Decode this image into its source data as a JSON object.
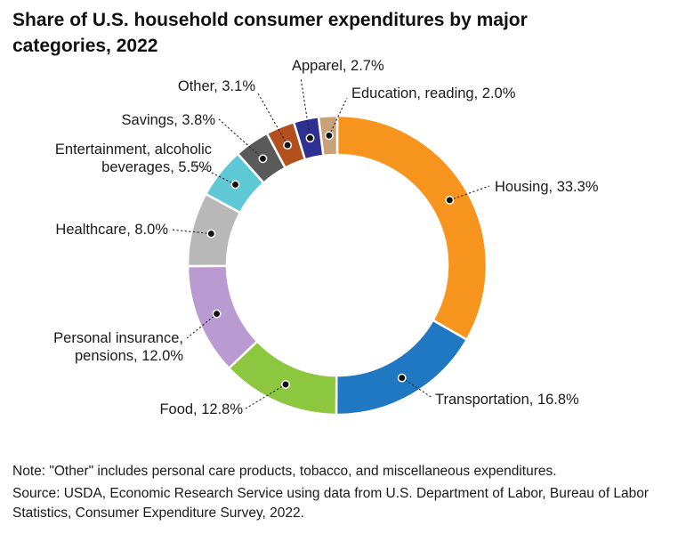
{
  "chart_data": {
    "type": "pie",
    "title": "Share of U.S. household consumer expenditures by major categories, 2022",
    "unit": "%",
    "slices": [
      {
        "name": "Housing",
        "label": "Housing, 33.3%",
        "value": 33.3,
        "color": "#F7941D"
      },
      {
        "name": "Transportation",
        "label": "Transportation, 16.8%",
        "value": 16.8,
        "color": "#1F78C1"
      },
      {
        "name": "Food",
        "label": "Food, 12.8%",
        "value": 12.8,
        "color": "#8DC63F"
      },
      {
        "name": "Personal insurance, pensions",
        "label": "Personal insurance,\npensions, 12.0%",
        "value": 12.0,
        "color": "#B99AD1"
      },
      {
        "name": "Healthcare",
        "label": "Healthcare, 8.0%",
        "value": 8.0,
        "color": "#B8B8B8"
      },
      {
        "name": "Entertainment, alcoholic beverages",
        "label": "Entertainment, alcoholic\nbeverages, 5.5%",
        "value": 5.5,
        "color": "#5EC8D4"
      },
      {
        "name": "Savings",
        "label": "Savings, 3.8%",
        "value": 3.8,
        "color": "#5A5A5A"
      },
      {
        "name": "Other",
        "label": "Other, 3.1%",
        "value": 3.1,
        "color": "#B2501E"
      },
      {
        "name": "Apparel",
        "label": "Apparel, 2.7%",
        "value": 2.7,
        "color": "#2E3192"
      },
      {
        "name": "Education, reading",
        "label": "Education, reading, 2.0%",
        "value": 2.0,
        "color": "#C8A17A"
      }
    ]
  },
  "footnotes": {
    "note": "Note: \"Other\" includes personal care products, tobacco, and miscellaneous expenditures.",
    "source": "Source: USDA, Economic Research Service using data from U.S. Department of Labor, Bureau of Labor Statistics, Consumer Expenditure Survey, 2022."
  }
}
